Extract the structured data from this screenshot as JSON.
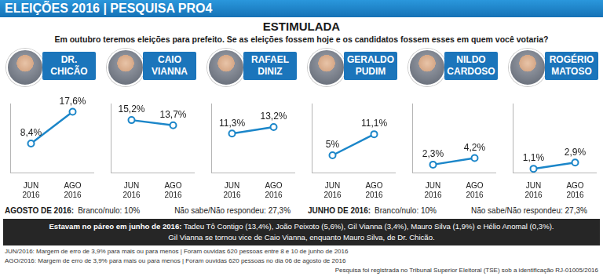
{
  "header": "ELEIÇÕES 2016 | PESQUISA PRO4",
  "title": "ESTIMULADA",
  "subtitle": "Em outubro teremos eleições para prefeito. Se as eleições fossem hoje e os candidatos fossem esses em quem você votaria?",
  "chart_data": [
    {
      "type": "line",
      "title": "DR. CHICÃO",
      "categories": [
        "JUN 2016",
        "AGO 2016"
      ],
      "values": [
        8.4,
        17.6
      ],
      "value_labels": [
        "8,4%",
        "17,6%"
      ],
      "color": "#1b86c9",
      "marker": "circle",
      "ylim": [
        0,
        20
      ],
      "yticks": [],
      "grid": false,
      "data_labels": true,
      "tick_labels": "x"
    },
    {
      "type": "line",
      "title": "CAIO VIANNA",
      "categories": [
        "JUN 2016",
        "AGO 2016"
      ],
      "values": [
        15.2,
        13.7
      ],
      "value_labels": [
        "15,2%",
        "13,7%"
      ],
      "color": "#1b86c9",
      "marker": "circle",
      "ylim": [
        0,
        20
      ],
      "yticks": [],
      "grid": false,
      "data_labels": true,
      "tick_labels": "x"
    },
    {
      "type": "line",
      "title": "RAFAEL DINIZ",
      "categories": [
        "JUN 2016",
        "AGO 2016"
      ],
      "values": [
        11.3,
        13.2
      ],
      "value_labels": [
        "11,3%",
        "13,2%"
      ],
      "color": "#1b86c9",
      "marker": "circle",
      "ylim": [
        0,
        20
      ],
      "yticks": [],
      "grid": false,
      "data_labels": true,
      "tick_labels": "x"
    },
    {
      "type": "line",
      "title": "GERALDO PUDIM",
      "categories": [
        "JUN 2016",
        "AGO 2016"
      ],
      "values": [
        5,
        11.1
      ],
      "value_labels": [
        "5%",
        "11,1%"
      ],
      "color": "#1b86c9",
      "marker": "circle",
      "ylim": [
        0,
        20
      ],
      "yticks": [],
      "grid": false,
      "data_labels": true,
      "tick_labels": "x"
    },
    {
      "type": "line",
      "title": "NILDO CARDOSO",
      "categories": [
        "JUN 2016",
        "AGO 2016"
      ],
      "values": [
        2.3,
        4.2
      ],
      "value_labels": [
        "2,3%",
        "4,2%"
      ],
      "color": "#1b86c9",
      "marker": "circle",
      "ylim": [
        0,
        20
      ],
      "yticks": [],
      "grid": false,
      "data_labels": true,
      "tick_labels": "x"
    },
    {
      "type": "line",
      "title": "ROGÉRIO MATOSO",
      "categories": [
        "JUN 2016",
        "AGO 2016"
      ],
      "values": [
        1.1,
        2.9
      ],
      "value_labels": [
        "1,1%",
        "2,9%"
      ],
      "color": "#1b86c9",
      "marker": "circle",
      "ylim": [
        0,
        20
      ],
      "yticks": [],
      "grid": false,
      "data_labels": true,
      "tick_labels": "x"
    }
  ],
  "summary": [
    {
      "label": "AGOSTO DE 2016:",
      "items": [
        "Branco/nulo: 10%",
        "Não sabe/Não respondeu: 27,3%"
      ]
    },
    {
      "label": "JUNHO DE 2016:",
      "items": [
        "Branco/nulo: 10%",
        "Não sabe/Não respondeu: 27,3%"
      ]
    }
  ],
  "box": {
    "label": "Estavam no páreo em junho de 2016:",
    "text": "Tadeu Tô Contigo (13,4%), João Peixoto (5,6%), Gil Vianna (3,4%), Mauro Silva (1,9%) e Hélio Anomal (0,3%).",
    "line2": "Gil Vianna se tornou vice de Caio Vianna, enquanto Mauro Silva, de Dr. Chicão."
  },
  "notes": [
    "JUN/2016: Margem de erro de 3,9% para mais ou para menos | Foram ouvidas 620 pessoas entre 8 e 10 de junho de 2016",
    "AGO/2016: Margem de erro de 3,9% para mais ou para menos | Foram ouvidas 620 pessoas no dia 06 de agosto de 2016",
    "Pesquisa foi registrada no Tribunal Superior Eleitoral (TSE) sob a identificação RJ-01005/2016"
  ]
}
